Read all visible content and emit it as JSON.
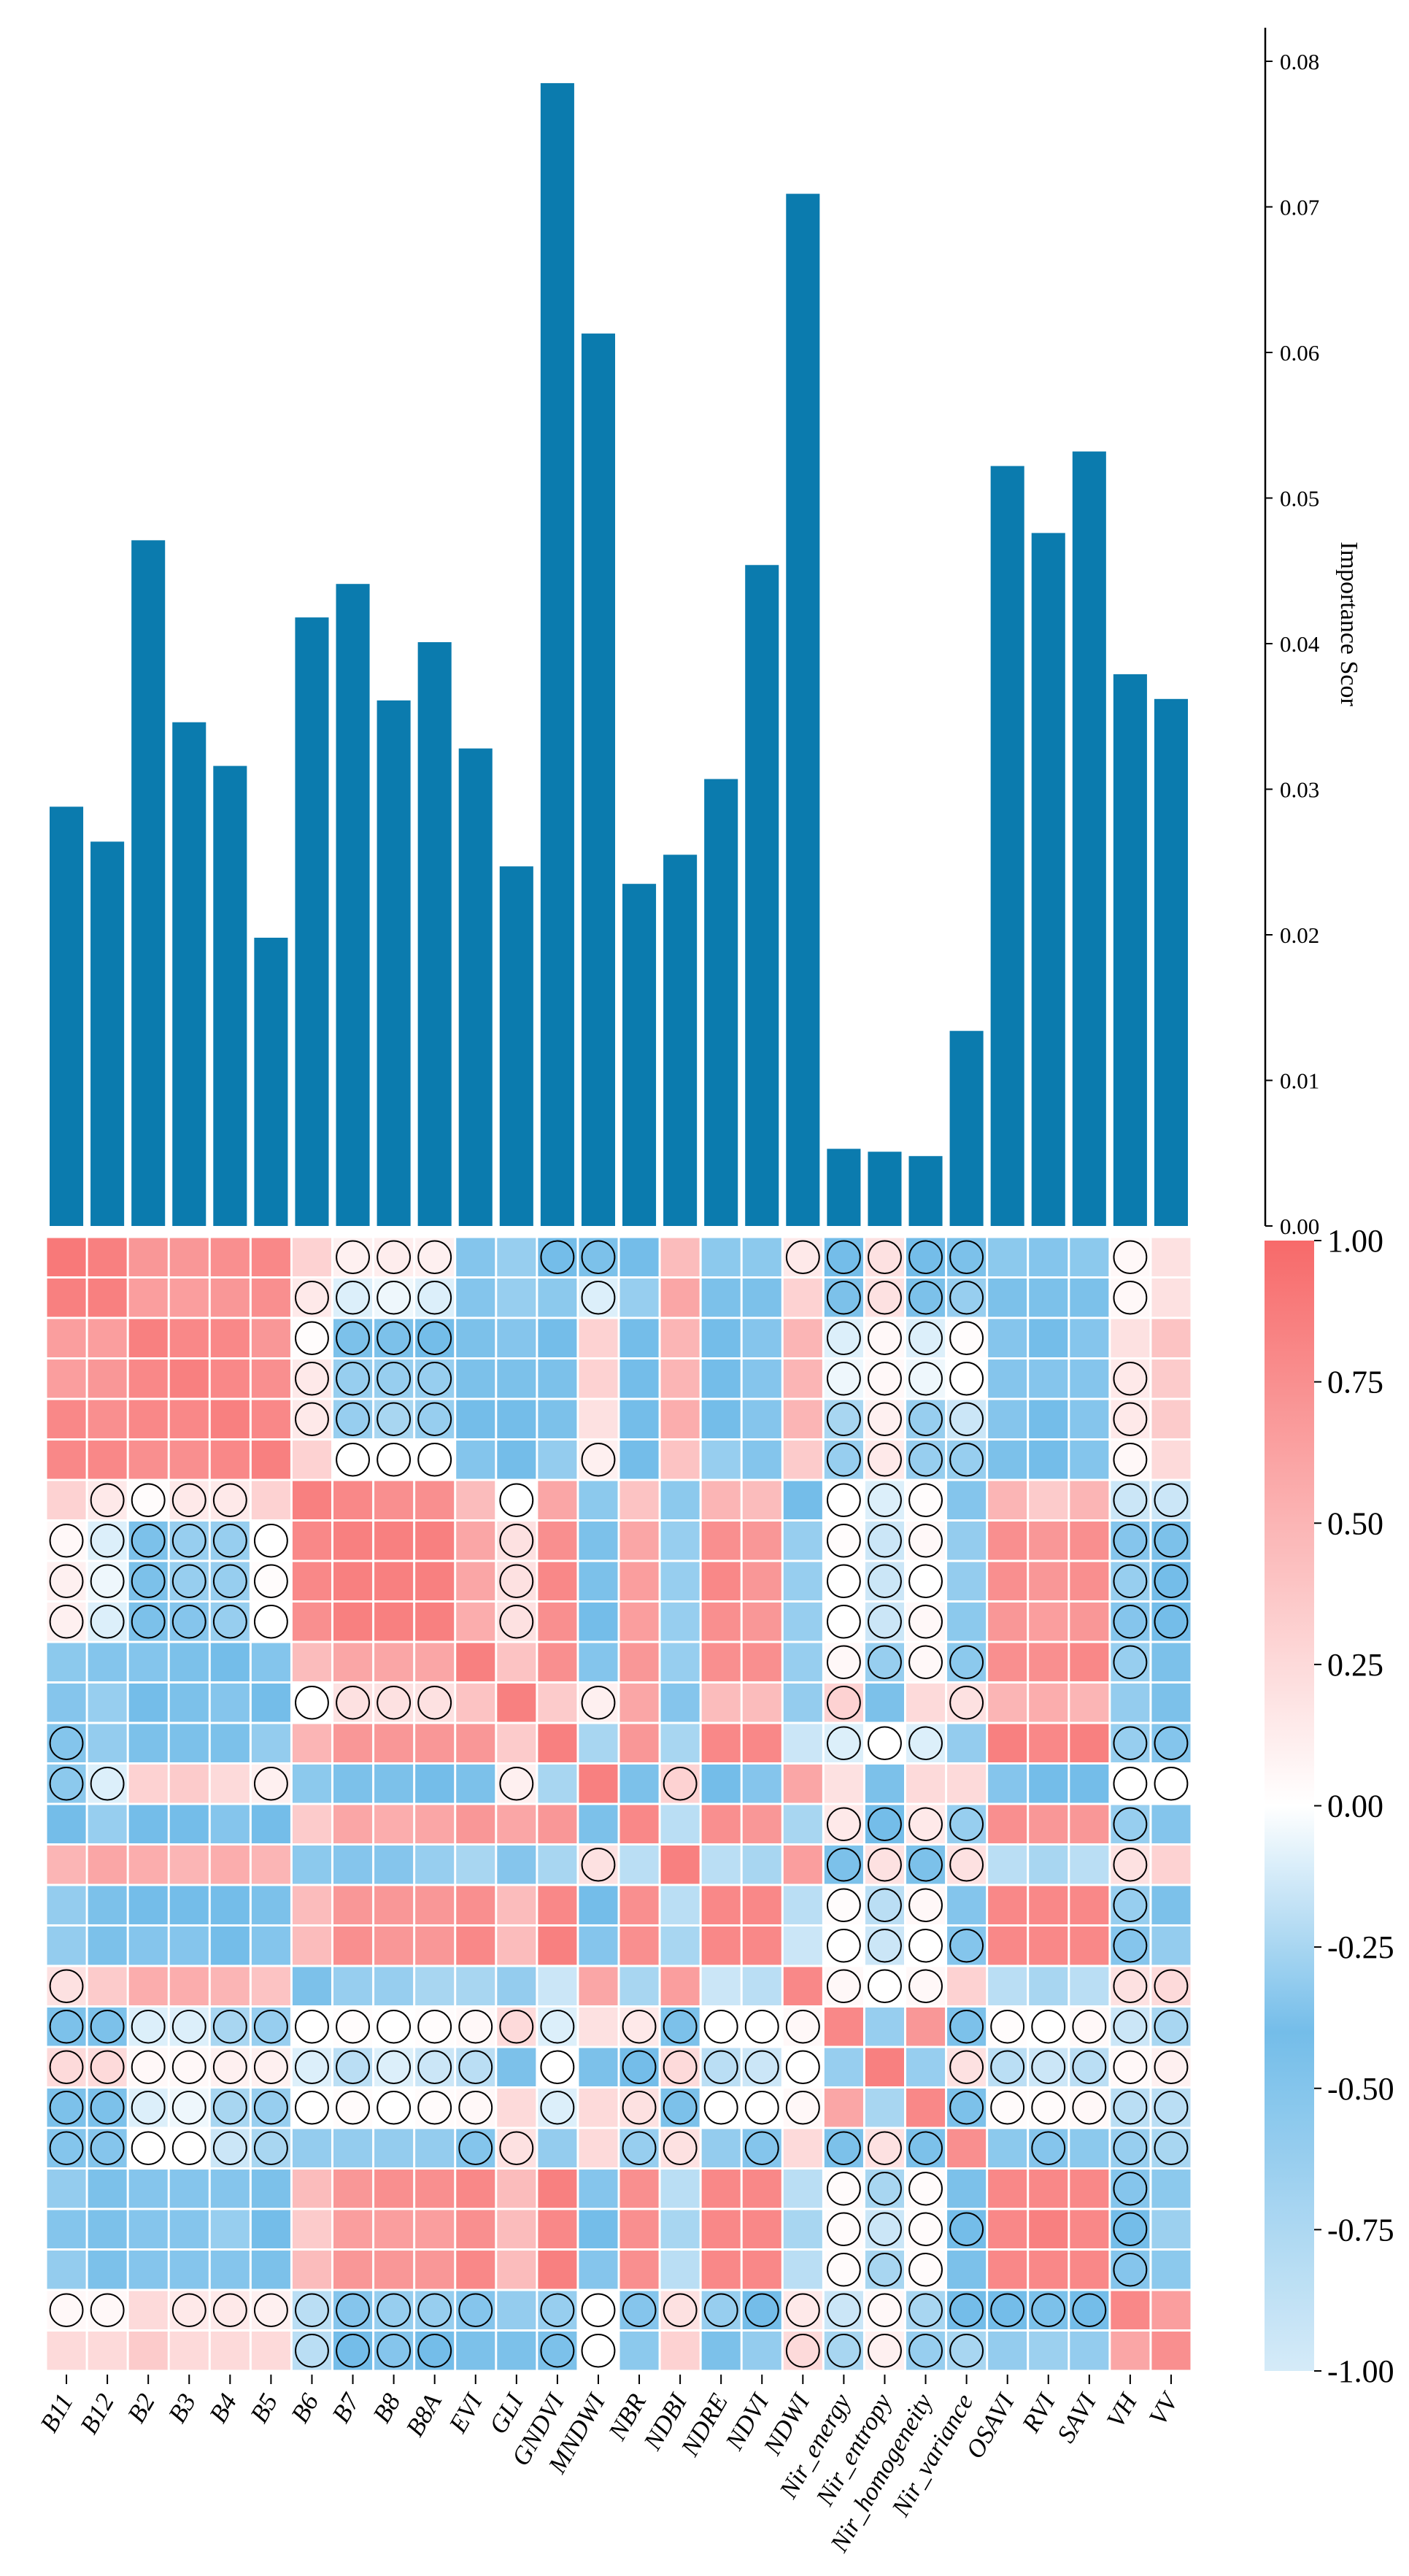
{
  "colors": {
    "bar": "#0B7BAE",
    "positive": "#F76A6A",
    "zero": "#FFFFFF",
    "negative_mid": "#74BDE9",
    "negative_end": "#D5EBF8",
    "circle": "#000000"
  },
  "chart_data": [
    {
      "type": "bar",
      "title": "",
      "ylabel": "Importance Scor",
      "ylim": [
        0,
        0.08
      ],
      "yticks": [
        "0.00",
        "0.01",
        "0.02",
        "0.03",
        "0.04",
        "0.05",
        "0.06",
        "0.07",
        "0.08"
      ],
      "y_axis_side": "right",
      "categories": [
        "B11",
        "B12",
        "B2",
        "B3",
        "B4",
        "B5",
        "B6",
        "B7",
        "B8",
        "B8A",
        "EVI",
        "GLI",
        "GNDVI",
        "MNDWI",
        "NBR",
        "NDBI",
        "NDRE",
        "NDVI",
        "NDWI",
        "Nir_energy",
        "Nir_entropy",
        "Nir_homogeneity",
        "Nir_variance",
        "OSAVI",
        "RVI",
        "SAVI",
        "VH",
        "VV"
      ],
      "values": [
        0.0288,
        0.0264,
        0.0471,
        0.0346,
        0.0316,
        0.0198,
        0.0418,
        0.0441,
        0.0361,
        0.0401,
        0.0328,
        0.0247,
        0.0785,
        0.0613,
        0.0235,
        0.0255,
        0.0307,
        0.0454,
        0.0709,
        0.0053,
        0.0051,
        0.0048,
        0.0134,
        0.0522,
        0.0476,
        0.0532,
        0.0379,
        0.0362
      ]
    },
    {
      "type": "heatmap",
      "xlabels": [
        "B11",
        "B12",
        "B2",
        "B3",
        "B4",
        "B5",
        "B6",
        "B7",
        "B8",
        "B8A",
        "EVI",
        "GLI",
        "GNDVI",
        "MNDWI",
        "NBR",
        "NDBI",
        "NDRE",
        "NDVI",
        "NDWI",
        "Nir_energy",
        "Nir_entropy",
        "Nir_homogeneity",
        "Nir_variance",
        "OSAVI",
        "RVI",
        "SAVI",
        "VH",
        "VV"
      ],
      "colorbar": {
        "range": [
          -1,
          1
        ],
        "ticks": [
          "1.00",
          "0.75",
          "0.50",
          "0.25",
          "0.00",
          "-0.25",
          "-0.50",
          "-0.75",
          "-1.00"
        ]
      },
      "circle_marker_meaning": "circled cells",
      "values": [
        [
          0.9,
          0.85,
          0.7,
          0.7,
          0.75,
          0.8,
          0.3,
          0.1,
          0.12,
          0.1,
          -0.5,
          -0.3,
          -0.4,
          -0.45,
          -0.4,
          0.45,
          -0.55,
          -0.55,
          0.15,
          -0.4,
          0.2,
          -0.4,
          -0.45,
          -0.55,
          -0.5,
          -0.55,
          0.05,
          0.2
        ],
        [
          0.85,
          0.85,
          0.65,
          0.65,
          0.7,
          0.75,
          0.15,
          -0.1,
          -0.05,
          -0.1,
          -0.5,
          -0.3,
          -0.55,
          -0.1,
          -0.3,
          0.6,
          -0.45,
          -0.45,
          0.3,
          -0.45,
          0.2,
          -0.45,
          -0.3,
          -0.45,
          -0.45,
          -0.45,
          0.05,
          0.2
        ],
        [
          0.65,
          0.65,
          0.85,
          0.8,
          0.8,
          0.7,
          0.02,
          -0.45,
          -0.45,
          -0.4,
          -0.45,
          -0.35,
          -0.4,
          0.3,
          -0.4,
          0.5,
          -0.4,
          -0.35,
          0.5,
          -0.1,
          0.05,
          -0.1,
          0.02,
          -0.35,
          -0.4,
          -0.35,
          0.2,
          0.4
        ],
        [
          0.65,
          0.7,
          0.8,
          0.85,
          0.8,
          0.75,
          0.15,
          -0.3,
          -0.3,
          -0.3,
          -0.45,
          -0.45,
          -0.45,
          0.3,
          -0.4,
          0.5,
          -0.4,
          -0.35,
          0.5,
          -0.05,
          0.05,
          -0.05,
          0,
          -0.35,
          -0.35,
          -0.35,
          0.15,
          0.35
        ],
        [
          0.8,
          0.75,
          0.8,
          0.8,
          0.85,
          0.8,
          0.15,
          -0.3,
          -0.25,
          -0.3,
          -0.4,
          -0.4,
          -0.45,
          0.2,
          -0.4,
          0.55,
          -0.4,
          -0.35,
          0.5,
          -0.25,
          0.1,
          -0.3,
          -0.15,
          -0.35,
          -0.4,
          -0.35,
          0.15,
          0.35
        ],
        [
          0.8,
          0.8,
          0.75,
          0.75,
          0.8,
          0.85,
          0.3,
          0,
          0,
          0,
          -0.5,
          -0.4,
          -0.6,
          0.1,
          -0.4,
          0.4,
          -0.3,
          -0.5,
          0.35,
          -0.3,
          0.15,
          -0.3,
          -0.3,
          -0.45,
          -0.4,
          -0.5,
          0.05,
          0.25
        ],
        [
          0.3,
          0.15,
          0.02,
          0.15,
          0.15,
          0.3,
          0.85,
          0.8,
          0.75,
          0.75,
          0.45,
          0,
          0.6,
          -0.55,
          0.4,
          -0.55,
          0.5,
          0.45,
          -0.4,
          0,
          -0.1,
          0.02,
          -0.5,
          0.5,
          0.35,
          0.5,
          -0.15,
          -0.15
        ],
        [
          0.05,
          -0.1,
          -0.45,
          -0.3,
          -0.3,
          0,
          0.8,
          0.85,
          0.85,
          0.85,
          0.6,
          0.2,
          0.75,
          -0.45,
          0.6,
          -0.3,
          0.75,
          0.7,
          -0.3,
          0.02,
          -0.15,
          0.05,
          -0.6,
          0.75,
          0.7,
          0.75,
          -0.35,
          -0.45
        ],
        [
          0.1,
          -0.05,
          -0.45,
          -0.3,
          -0.3,
          0.02,
          0.8,
          0.85,
          0.85,
          0.85,
          0.6,
          0.2,
          0.8,
          -0.45,
          0.65,
          -0.3,
          0.8,
          0.7,
          -0.3,
          0,
          -0.15,
          0,
          -0.6,
          0.75,
          0.7,
          0.75,
          -0.3,
          -0.4
        ],
        [
          0.1,
          -0.1,
          -0.45,
          -0.35,
          -0.3,
          0,
          0.75,
          0.85,
          0.85,
          0.85,
          0.55,
          0.2,
          0.75,
          -0.4,
          0.65,
          -0.3,
          0.75,
          0.7,
          -0.3,
          0,
          -0.15,
          0.05,
          -0.55,
          0.7,
          0.65,
          0.7,
          -0.35,
          -0.4
        ],
        [
          -0.55,
          -0.5,
          -0.5,
          -0.45,
          -0.4,
          -0.5,
          0.45,
          0.6,
          0.6,
          0.6,
          0.85,
          0.4,
          0.75,
          -0.5,
          0.7,
          -0.3,
          0.75,
          0.75,
          -0.3,
          0.05,
          -0.3,
          0.05,
          -0.55,
          0.75,
          0.75,
          0.8,
          -0.3,
          -0.45
        ],
        [
          -0.35,
          -0.3,
          -0.4,
          -0.45,
          -0.35,
          -0.4,
          0,
          0.2,
          0.2,
          0.2,
          0.4,
          0.85,
          0.35,
          0.1,
          0.6,
          -0.35,
          0.45,
          0.45,
          -0.6,
          0.3,
          -0.45,
          0.25,
          0.2,
          0.5,
          0.55,
          0.5,
          -0.6,
          -0.45
        ],
        [
          -0.5,
          -0.6,
          -0.45,
          -0.45,
          -0.45,
          -0.6,
          0.5,
          0.7,
          0.7,
          0.7,
          0.7,
          0.35,
          0.85,
          -0.25,
          0.7,
          -0.25,
          0.8,
          0.8,
          -0.15,
          -0.1,
          0,
          -0.1,
          -0.6,
          0.85,
          0.8,
          0.85,
          -0.3,
          -0.5
        ],
        [
          -0.55,
          -0.1,
          0.3,
          0.35,
          0.25,
          0.1,
          -0.55,
          -0.45,
          -0.45,
          -0.4,
          -0.45,
          0.1,
          -0.25,
          0.85,
          -0.45,
          0.3,
          -0.4,
          -0.35,
          0.6,
          0.2,
          -0.45,
          0.25,
          0.25,
          -0.35,
          -0.4,
          -0.4,
          0,
          0
        ],
        [
          -0.4,
          -0.3,
          -0.4,
          -0.4,
          -0.35,
          -0.4,
          0.35,
          0.6,
          0.55,
          0.6,
          0.7,
          0.6,
          0.7,
          -0.45,
          0.8,
          -0.2,
          0.75,
          0.7,
          -0.25,
          0.15,
          -0.4,
          0.15,
          -0.3,
          0.75,
          0.7,
          0.7,
          -0.3,
          -0.5
        ],
        [
          0.5,
          0.6,
          0.55,
          0.5,
          0.55,
          0.5,
          -0.55,
          -0.35,
          -0.35,
          -0.3,
          -0.25,
          -0.35,
          -0.25,
          0.2,
          -0.2,
          0.85,
          -0.2,
          -0.25,
          0.65,
          -0.45,
          0.2,
          -0.45,
          0.2,
          -0.2,
          -0.25,
          -0.2,
          0.2,
          0.3
        ],
        [
          -0.6,
          -0.45,
          -0.4,
          -0.4,
          -0.4,
          -0.45,
          0.45,
          0.7,
          0.7,
          0.7,
          0.75,
          0.45,
          0.8,
          -0.4,
          0.75,
          -0.2,
          0.8,
          0.8,
          -0.2,
          0.02,
          -0.2,
          0.05,
          -0.5,
          0.8,
          0.8,
          0.8,
          -0.3,
          -0.45
        ],
        [
          -0.6,
          -0.45,
          -0.35,
          -0.35,
          -0.4,
          -0.5,
          0.45,
          0.75,
          0.7,
          0.7,
          0.8,
          0.45,
          0.85,
          -0.35,
          0.75,
          -0.25,
          0.8,
          0.8,
          -0.15,
          0,
          -0.15,
          0,
          -0.5,
          0.8,
          0.8,
          0.8,
          -0.35,
          -0.6
        ],
        [
          0.2,
          0.35,
          0.55,
          0.55,
          0.5,
          0.4,
          -0.45,
          -0.3,
          -0.3,
          -0.25,
          -0.25,
          -0.6,
          -0.15,
          0.6,
          -0.25,
          0.65,
          -0.15,
          -0.2,
          0.8,
          0.05,
          0,
          0.05,
          0.3,
          -0.2,
          -0.25,
          -0.2,
          0.2,
          0.25
        ],
        [
          -0.45,
          -0.45,
          -0.1,
          -0.1,
          -0.25,
          -0.3,
          0,
          0.02,
          0,
          0.02,
          0.05,
          0.25,
          -0.1,
          0.2,
          0.15,
          -0.45,
          0,
          0,
          0.05,
          0.8,
          -0.3,
          0.7,
          -0.45,
          0.02,
          0,
          0.05,
          -0.15,
          -0.25
        ],
        [
          0.25,
          0.25,
          0.05,
          0.05,
          0.1,
          0.1,
          -0.1,
          -0.2,
          -0.1,
          -0.15,
          -0.2,
          -0.45,
          0,
          -0.45,
          -0.4,
          0.25,
          -0.2,
          -0.15,
          0,
          -0.3,
          0.85,
          -0.3,
          0.2,
          -0.2,
          -0.15,
          -0.2,
          0.05,
          0.1
        ],
        [
          -0.45,
          -0.45,
          -0.1,
          -0.05,
          -0.25,
          -0.3,
          0,
          0.03,
          0,
          0.03,
          0.05,
          0.25,
          -0.1,
          0.25,
          0.2,
          -0.45,
          0,
          0,
          0.05,
          0.6,
          -0.25,
          0.8,
          -0.45,
          0.03,
          0.03,
          0.05,
          -0.2,
          -0.2
        ],
        [
          -0.5,
          -0.35,
          0,
          0,
          -0.15,
          -0.25,
          -0.6,
          -0.6,
          -0.6,
          -0.6,
          -0.5,
          0.2,
          -0.6,
          0.25,
          -0.3,
          0.2,
          -0.6,
          -0.5,
          0.25,
          -0.45,
          0.2,
          -0.45,
          0.75,
          -0.55,
          -0.35,
          -0.55,
          -0.3,
          -0.25
        ],
        [
          -0.6,
          -0.45,
          -0.35,
          -0.35,
          -0.35,
          -0.45,
          0.45,
          0.7,
          0.75,
          0.75,
          0.8,
          0.45,
          0.85,
          -0.35,
          0.75,
          -0.2,
          0.8,
          0.8,
          -0.2,
          0.03,
          -0.25,
          0.03,
          -0.45,
          0.8,
          0.8,
          0.8,
          -0.35,
          -0.55
        ],
        [
          -0.5,
          -0.45,
          -0.35,
          -0.35,
          -0.3,
          -0.4,
          0.35,
          0.65,
          0.65,
          0.65,
          0.75,
          0.45,
          0.8,
          -0.4,
          0.75,
          -0.25,
          0.8,
          0.8,
          -0.25,
          0.03,
          -0.15,
          0.03,
          -0.4,
          0.8,
          0.85,
          0.8,
          -0.4,
          -0.65
        ],
        [
          -0.6,
          -0.45,
          -0.35,
          -0.35,
          -0.35,
          -0.45,
          0.45,
          0.7,
          0.7,
          0.7,
          0.8,
          0.45,
          0.85,
          -0.35,
          0.75,
          -0.2,
          0.8,
          0.8,
          -0.2,
          0.03,
          -0.25,
          0.03,
          -0.45,
          0.8,
          0.8,
          0.8,
          -0.35,
          -0.55
        ],
        [
          0.05,
          0.05,
          0.25,
          0.15,
          0.15,
          0.1,
          -0.2,
          -0.35,
          -0.3,
          -0.3,
          -0.35,
          -0.6,
          -0.3,
          0,
          -0.35,
          0.2,
          -0.3,
          -0.4,
          0.15,
          -0.15,
          0.05,
          -0.25,
          -0.4,
          -0.4,
          -0.45,
          -0.4,
          0.8,
          0.65
        ],
        [
          0.25,
          0.25,
          0.35,
          0.25,
          0.25,
          0.25,
          -0.2,
          -0.4,
          -0.35,
          -0.4,
          -0.45,
          -0.45,
          -0.45,
          0,
          -0.55,
          0.3,
          -0.45,
          -0.6,
          0.25,
          -0.25,
          0.1,
          -0.3,
          -0.25,
          -0.6,
          -0.65,
          -0.6,
          0.6,
          0.75
        ]
      ],
      "circled": [
        "0000000111001100001111100010",
        "0000001111000100000111100010",
        "0000001111000000000111100000",
        "0000001111000000000111100010",
        "0000001111000000000111100010",
        "0000000111000100000111100010",
        "0111100000010000000111000011",
        "1111110000010000000111000011",
        "1111110000010000000111000011",
        "1111110000010000000111000011",
        "0000000000000000000111100010",
        "0000001111000100000100100000",
        "1000000000000000000111000011",
        "1100010000010001000000000011",
        "0000000000000000000111100010",
        "0000000000000100000111100010",
        "0000000000000000000111000010",
        "0000000000000000000111100010",
        "1000000000000000000111000011",
        "1111111111111011111000111111",
        "1111111111101011111000111111",
        "1111111111101011111000111111",
        "1111110000110011010111001011",
        "0000000000000000000111000010",
        "0000000000000000000111100010",
        "0000000000000000000111000010",
        "1101111111101111111111111100",
        "0000001111001100001111100000"
      ]
    }
  ]
}
